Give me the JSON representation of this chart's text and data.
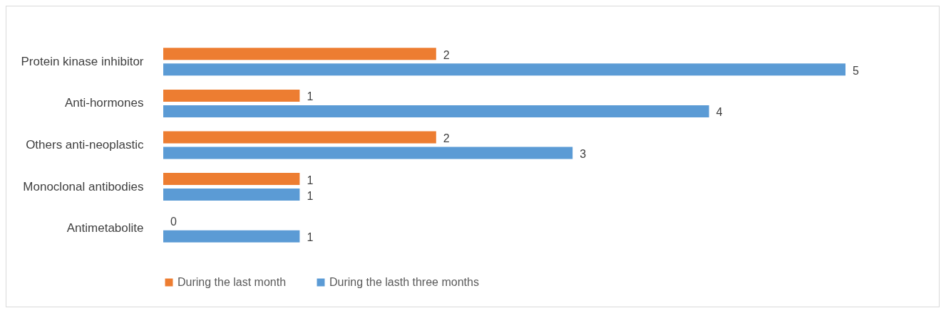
{
  "chart_data": {
    "type": "bar",
    "orientation": "horizontal",
    "categories": [
      "Protein kinase inhibitor",
      "Anti-hormones",
      "Others anti-neoplastic",
      "Monoclonal antibodies",
      "Antimetabolite"
    ],
    "series": [
      {
        "name": "During the last month",
        "color": "#ed7d31",
        "values": [
          2,
          1,
          2,
          1,
          0
        ]
      },
      {
        "name": "During the lasth three months",
        "color": "#5b9bd5",
        "values": [
          5,
          4,
          3,
          1,
          1
        ]
      }
    ],
    "data_labels": true,
    "legend": "bottom"
  }
}
